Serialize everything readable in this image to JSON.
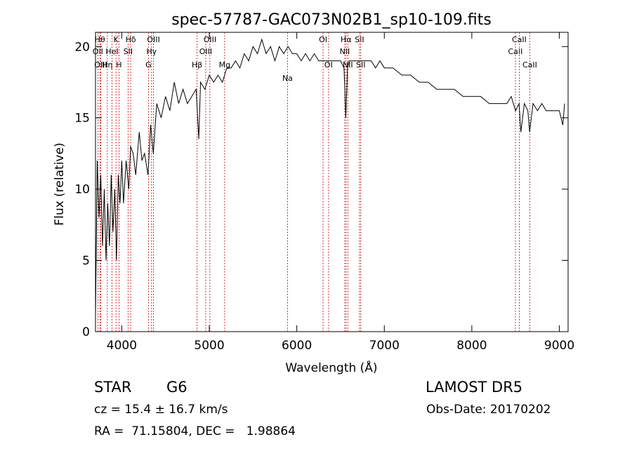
{
  "chart_data": {
    "type": "line",
    "title": "spec-57787-GAC073N02B1_sp10-109.fits",
    "xlabel": "Wavelength (Å)",
    "ylabel": "Flux (relative)",
    "xlim": [
      3700,
      9100
    ],
    "ylim": [
      0,
      21
    ],
    "x_ticks": [
      4000,
      5000,
      6000,
      7000,
      8000,
      9000
    ],
    "y_ticks": [
      0,
      5,
      10,
      15,
      20
    ],
    "grid": false,
    "line_color": "#000000",
    "marker_line_color": "#cc0000",
    "series": [
      {
        "x": [
          3700,
          3720,
          3740,
          3760,
          3780,
          3800,
          3820,
          3840,
          3860,
          3880,
          3900,
          3920,
          3940,
          3960,
          3980,
          4000,
          4020,
          4050,
          4080,
          4100,
          4130,
          4160,
          4200,
          4230,
          4260,
          4300,
          4330,
          4360,
          4400,
          4450,
          4500,
          4550,
          4600,
          4650,
          4700,
          4750,
          4800,
          4850,
          4880,
          4900,
          4950,
          5000,
          5050,
          5100,
          5150,
          5200,
          5250,
          5300,
          5350,
          5400,
          5450,
          5500,
          5550,
          5600,
          5650,
          5700,
          5750,
          5800,
          5850,
          5900,
          5950,
          6000,
          6050,
          6100,
          6150,
          6200,
          6250,
          6300,
          6350,
          6400,
          6450,
          6500,
          6540,
          6560,
          6580,
          6600,
          6650,
          6700,
          6750,
          6800,
          6850,
          6900,
          6950,
          7000,
          7100,
          7200,
          7300,
          7400,
          7500,
          7600,
          7700,
          7800,
          7900,
          8000,
          8100,
          8200,
          8300,
          8400,
          8450,
          8500,
          8540,
          8560,
          8600,
          8640,
          8660,
          8700,
          8750,
          8800,
          8850,
          8900,
          8950,
          9000,
          9040,
          9060
        ],
        "y": [
          1.0,
          12.0,
          8.0,
          11.0,
          6.0,
          10.0,
          5.0,
          9.0,
          6.0,
          11.0,
          7.0,
          10.0,
          5.0,
          11.0,
          9.0,
          12.0,
          9.0,
          12.0,
          10.0,
          13.0,
          12.5,
          11.0,
          14.0,
          12.0,
          12.5,
          11.0,
          14.5,
          12.5,
          16.0,
          15.0,
          16.5,
          15.5,
          17.5,
          16.0,
          17.0,
          16.0,
          16.5,
          17.0,
          13.5,
          17.5,
          17.0,
          18.0,
          17.5,
          18.0,
          17.5,
          18.5,
          18.5,
          19.0,
          18.5,
          19.5,
          19.0,
          20.0,
          19.5,
          20.5,
          19.5,
          20.0,
          19.0,
          20.0,
          19.5,
          20.0,
          19.5,
          19.5,
          19.0,
          19.5,
          19.0,
          19.5,
          19.0,
          19.0,
          19.0,
          19.0,
          19.0,
          19.0,
          18.5,
          15.0,
          18.5,
          19.0,
          19.0,
          19.0,
          19.0,
          19.0,
          19.0,
          18.5,
          19.0,
          18.5,
          18.5,
          18.0,
          18.0,
          17.5,
          17.5,
          17.0,
          17.0,
          17.0,
          16.5,
          16.5,
          16.5,
          16.0,
          16.0,
          16.0,
          16.5,
          15.5,
          16.0,
          14.0,
          16.0,
          15.5,
          14.0,
          16.0,
          15.5,
          16.0,
          15.5,
          15.5,
          15.5,
          15.5,
          14.5,
          16.0
        ]
      }
    ],
    "line_markers": [
      {
        "label": "Hθ",
        "wavelength": 3750,
        "row": 0
      },
      {
        "label": "OII",
        "wavelength": 3727,
        "row": 1
      },
      {
        "label": "OIII",
        "wavelength": 3760,
        "row": 2
      },
      {
        "label": "Hη",
        "wavelength": 3835,
        "row": 2
      },
      {
        "label": "HeI",
        "wavelength": 3889,
        "row": 1
      },
      {
        "label": "K",
        "wavelength": 3934,
        "row": 0
      },
      {
        "label": "H",
        "wavelength": 3968,
        "row": 2
      },
      {
        "label": "SII",
        "wavelength": 4072,
        "row": 1
      },
      {
        "label": "Hδ",
        "wavelength": 4102,
        "row": 0
      },
      {
        "label": "G",
        "wavelength": 4305,
        "row": 2
      },
      {
        "label": "Hγ",
        "wavelength": 4340,
        "row": 1
      },
      {
        "label": "OIII",
        "wavelength": 4363,
        "row": 0
      },
      {
        "label": "Hβ",
        "wavelength": 4861,
        "row": 2
      },
      {
        "label": "OIII",
        "wavelength": 4959,
        "row": 1
      },
      {
        "label": "OIII",
        "wavelength": 5007,
        "row": 0
      },
      {
        "label": "Mg",
        "wavelength": 5175,
        "row": 2
      },
      {
        "label": "Na",
        "wavelength": 5894,
        "row": 3
      },
      {
        "label": "OI",
        "wavelength": 6300,
        "row": 0
      },
      {
        "label": "OI",
        "wavelength": 6363,
        "row": 2
      },
      {
        "label": "NII",
        "wavelength": 6548,
        "row": 1
      },
      {
        "label": "Hα",
        "wavelength": 6563,
        "row": 0
      },
      {
        "label": "NII",
        "wavelength": 6583,
        "row": 2
      },
      {
        "label": "SII",
        "wavelength": 6716,
        "row": 0
      },
      {
        "label": "SII",
        "wavelength": 6731,
        "row": 2
      },
      {
        "label": "CaII",
        "wavelength": 8498,
        "row": 1
      },
      {
        "label": "CaII",
        "wavelength": 8542,
        "row": 0
      },
      {
        "label": "CaII",
        "wavelength": 8662,
        "row": 2
      }
    ]
  },
  "info": {
    "object_type": "STAR",
    "subclass": "G6",
    "survey": "LAMOST DR5",
    "cz": "cz = 15.4 ± 16.7 km/s",
    "obs_date": "Obs-Date: 20170202",
    "radec": "RA =  71.15804, DEC =   1.98864"
  }
}
